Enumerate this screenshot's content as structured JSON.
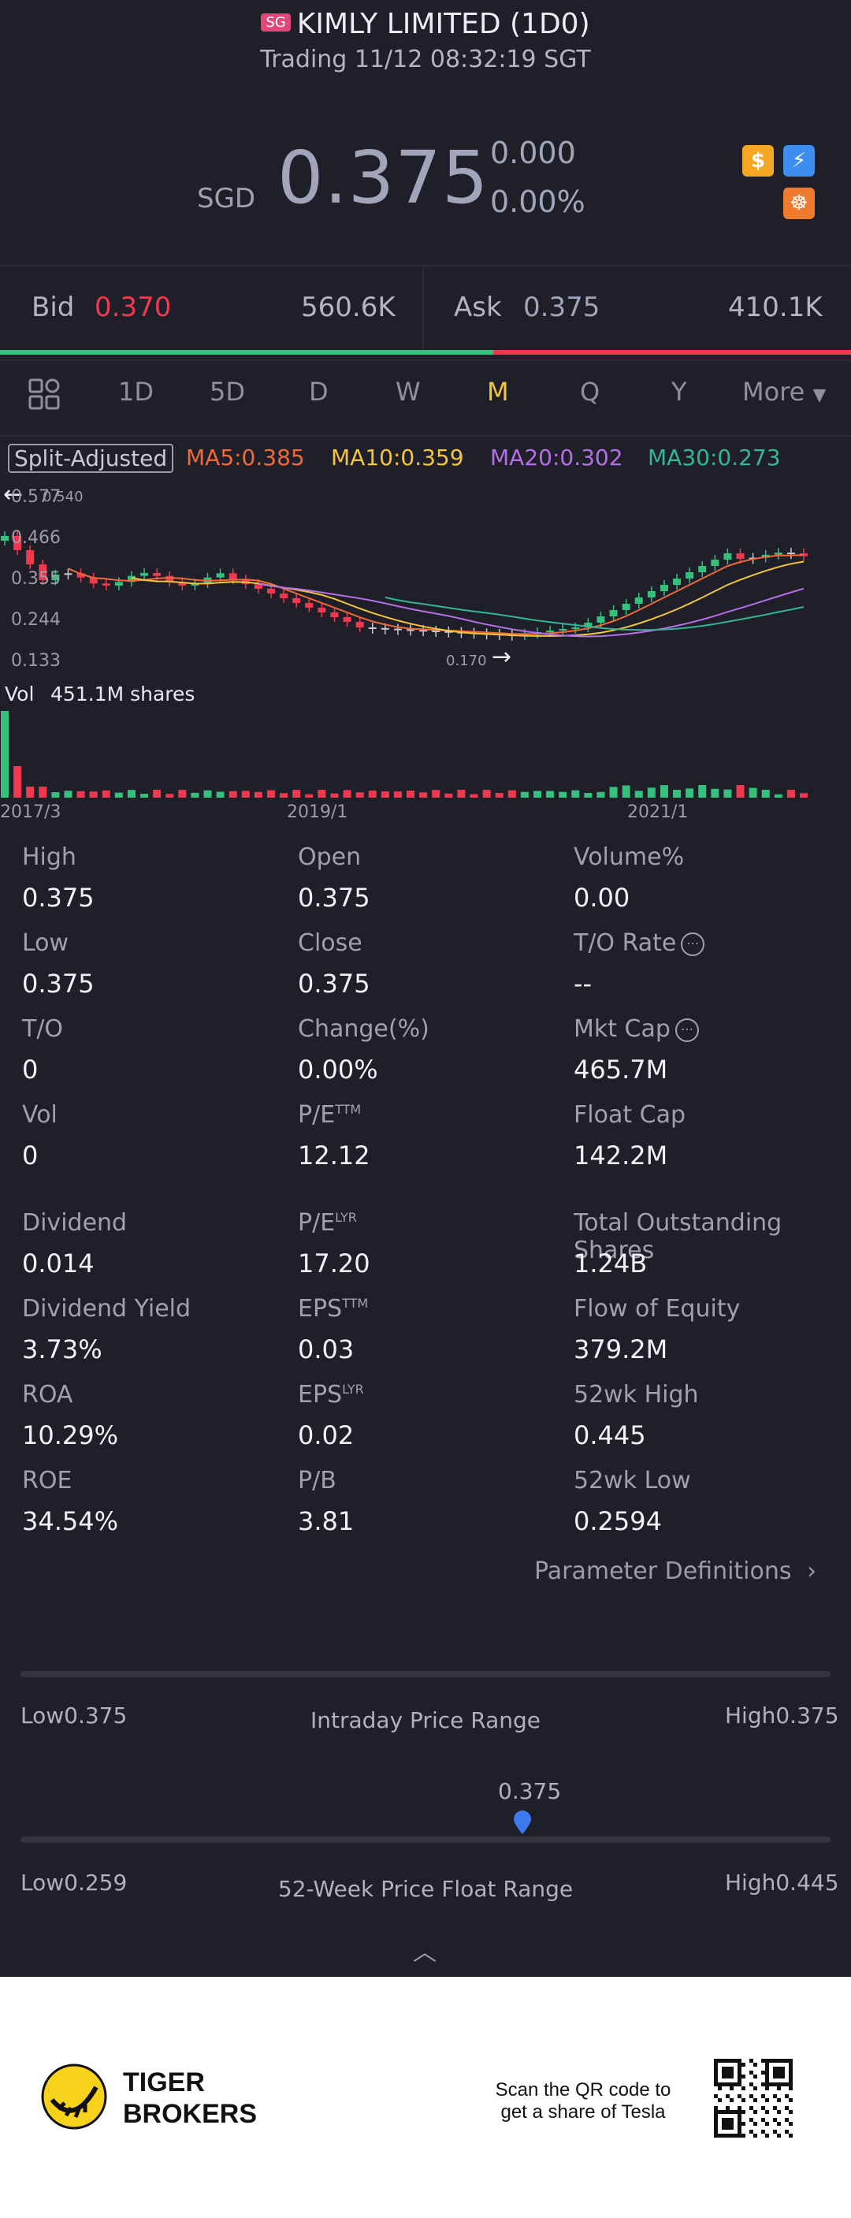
{
  "header": {
    "market_badge": "SG",
    "title": "KIMLY LIMITED (1D0)",
    "status": "Trading 11/12 08:32:19 SGT"
  },
  "quote": {
    "currency": "SGD",
    "price": "0.375",
    "change": "0.000",
    "change_pct": "0.00%"
  },
  "bid_ask": {
    "bid_label": "Bid",
    "bid_price": "0.370",
    "bid_size": "560.6K",
    "ask_label": "Ask",
    "ask_price": "0.375",
    "ask_size": "410.1K",
    "bid_ratio": 0.58
  },
  "tabs": [
    "1D",
    "5D",
    "D",
    "W",
    "M",
    "Q",
    "Y",
    "More"
  ],
  "active_tab": "M",
  "chart": {
    "adjust_label": "Split-Adjusted",
    "ma": [
      {
        "label": "MA5:0.385",
        "color": "#f06a39"
      },
      {
        "label": "MA10:0.359",
        "color": "#f3c53b"
      },
      {
        "label": "MA20:0.302",
        "color": "#b66ee8"
      },
      {
        "label": "MA30:0.273",
        "color": "#33b59a"
      }
    ],
    "y_ticks": [
      "0.577",
      "0.466",
      "0.355",
      "0.244",
      "0.133"
    ],
    "high_marker": "0.540",
    "low_marker": "0.170",
    "vol_label": "Vol",
    "vol_value": "451.1M shares",
    "x_ticks": [
      "2017/3",
      "2019/1",
      "2021/1"
    ]
  },
  "stats": [
    {
      "label": "High",
      "value": "0.375"
    },
    {
      "label": "Open",
      "value": "0.375"
    },
    {
      "label": "Volume%",
      "value": "0.00"
    },
    {
      "label": "Low",
      "value": "0.375"
    },
    {
      "label": "Close",
      "value": "0.375"
    },
    {
      "label": "T/O Rate",
      "value": "--"
    },
    {
      "label": "T/O",
      "value": "0"
    },
    {
      "label": "Change(%)",
      "value": "0.00%"
    },
    {
      "label": "Mkt Cap",
      "value": "465.7M"
    },
    {
      "label": "Vol",
      "value": "0"
    },
    {
      "label": "P/E",
      "sup": "TTM",
      "value": "12.12"
    },
    {
      "label": "Float Cap",
      "value": "142.2M"
    },
    {
      "label": "Dividend",
      "value": "0.014"
    },
    {
      "label": "P/E",
      "sup": "LYR",
      "value": "17.20"
    },
    {
      "label": "Total Outstanding Shares",
      "value": "1.24B"
    },
    {
      "label": "Dividend Yield",
      "value": "3.73%"
    },
    {
      "label": "EPS",
      "sup": "TTM",
      "value": "0.03"
    },
    {
      "label": "Flow of Equity",
      "value": "379.2M"
    },
    {
      "label": "ROA",
      "value": "10.29%"
    },
    {
      "label": "EPS",
      "sup": "LYR",
      "value": "0.02"
    },
    {
      "label": "52wk High",
      "value": "0.445"
    },
    {
      "label": "ROE",
      "value": "34.54%"
    },
    {
      "label": "P/B",
      "value": "3.81"
    },
    {
      "label": "52wk Low",
      "value": "0.2594"
    }
  ],
  "param_link": "Parameter Definitions",
  "ranges": {
    "intraday": {
      "low_label": "Low",
      "low": "0.375",
      "title": "Intraday Price Range",
      "high_label": "High",
      "high": "0.375",
      "current": "0.375"
    },
    "week52": {
      "low_label": "Low",
      "low": "0.259",
      "title": "52-Week Price Float Range",
      "high_label": "High",
      "high": "0.445",
      "position": 0.62
    }
  },
  "footer": {
    "brand_line1": "TIGER",
    "brand_line2": "BROKERS",
    "promo_line1": "Scan the QR code to",
    "promo_line2": "get a share of Tesla"
  },
  "colors": {
    "up": "#36c07e",
    "down": "#f0394f",
    "accent": "#f3c53b"
  }
}
